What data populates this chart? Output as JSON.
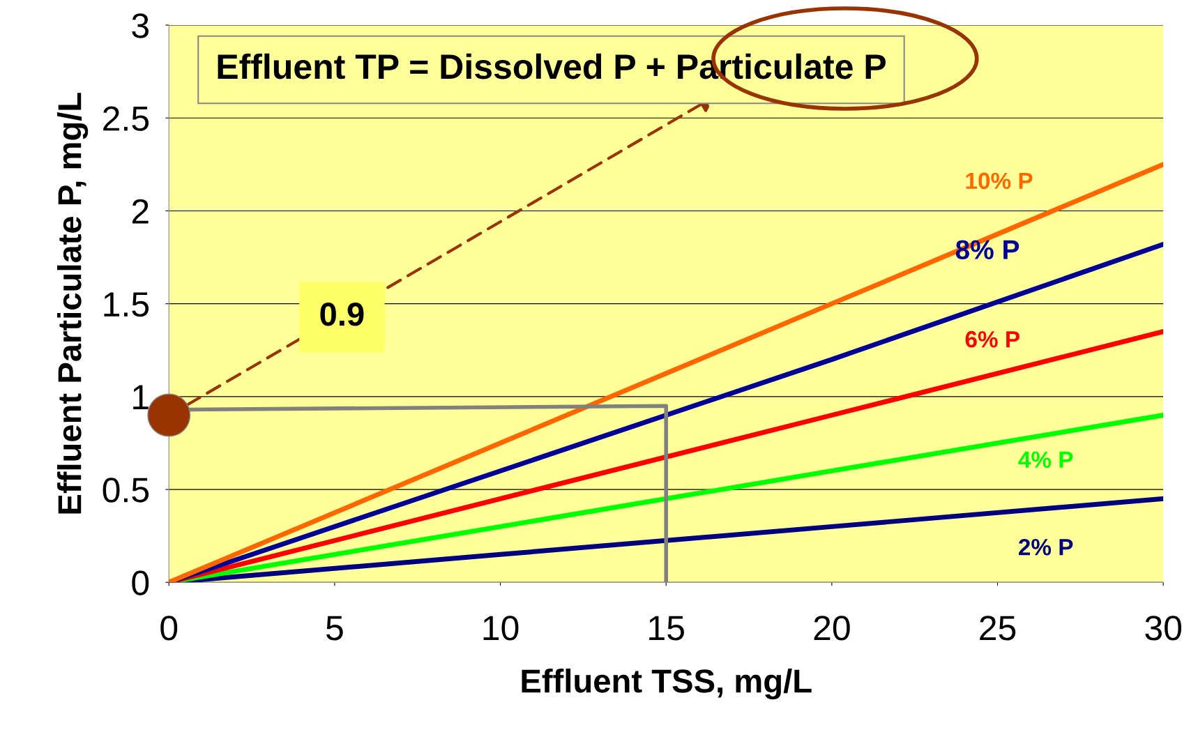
{
  "chart_data": {
    "type": "line",
    "xlabel": "Effluent TSS, mg/L",
    "ylabel": "Effluent Particulate P, mg/L",
    "x": [
      0,
      10,
      20,
      30
    ],
    "series": [
      {
        "name": "2% P",
        "color": "#000080",
        "values": [
          0,
          0.15,
          0.3,
          0.45
        ]
      },
      {
        "name": "4% P",
        "color": "#00ff00",
        "values": [
          0,
          0.3,
          0.6,
          0.9
        ]
      },
      {
        "name": "6% P",
        "color": "#ff0000",
        "values": [
          0,
          0.45,
          0.9,
          1.35
        ]
      },
      {
        "name": "8% P",
        "color": "#000099",
        "values": [
          0,
          0.6,
          1.2,
          1.82
        ]
      },
      {
        "name": "10% P",
        "color": "#ff6600",
        "values": [
          0,
          0.75,
          1.5,
          2.25
        ]
      },
      {
        "type": "line",
        "color": "#808080",
        "x": [
          0.55,
          15,
          15
        ],
        "values": [
          0.93,
          0.95,
          0
        ]
      },
      {
        "type": "scatter",
        "color": "#993300",
        "x": [
          0
        ],
        "values": [
          0.9
        ],
        "marker": "circle"
      }
    ],
    "annotations": [
      "Effluent TP = Dissolved P + Particulate P",
      "0.9"
    ],
    "xlim": [
      0,
      30
    ],
    "ylim": [
      0,
      3
    ],
    "xticks": [
      0,
      5,
      10,
      15,
      20,
      25,
      30
    ],
    "yticks": [
      0,
      0.5,
      1,
      1.5,
      2,
      2.5,
      3
    ],
    "grid": "y",
    "legend": false,
    "marker": "none"
  }
}
